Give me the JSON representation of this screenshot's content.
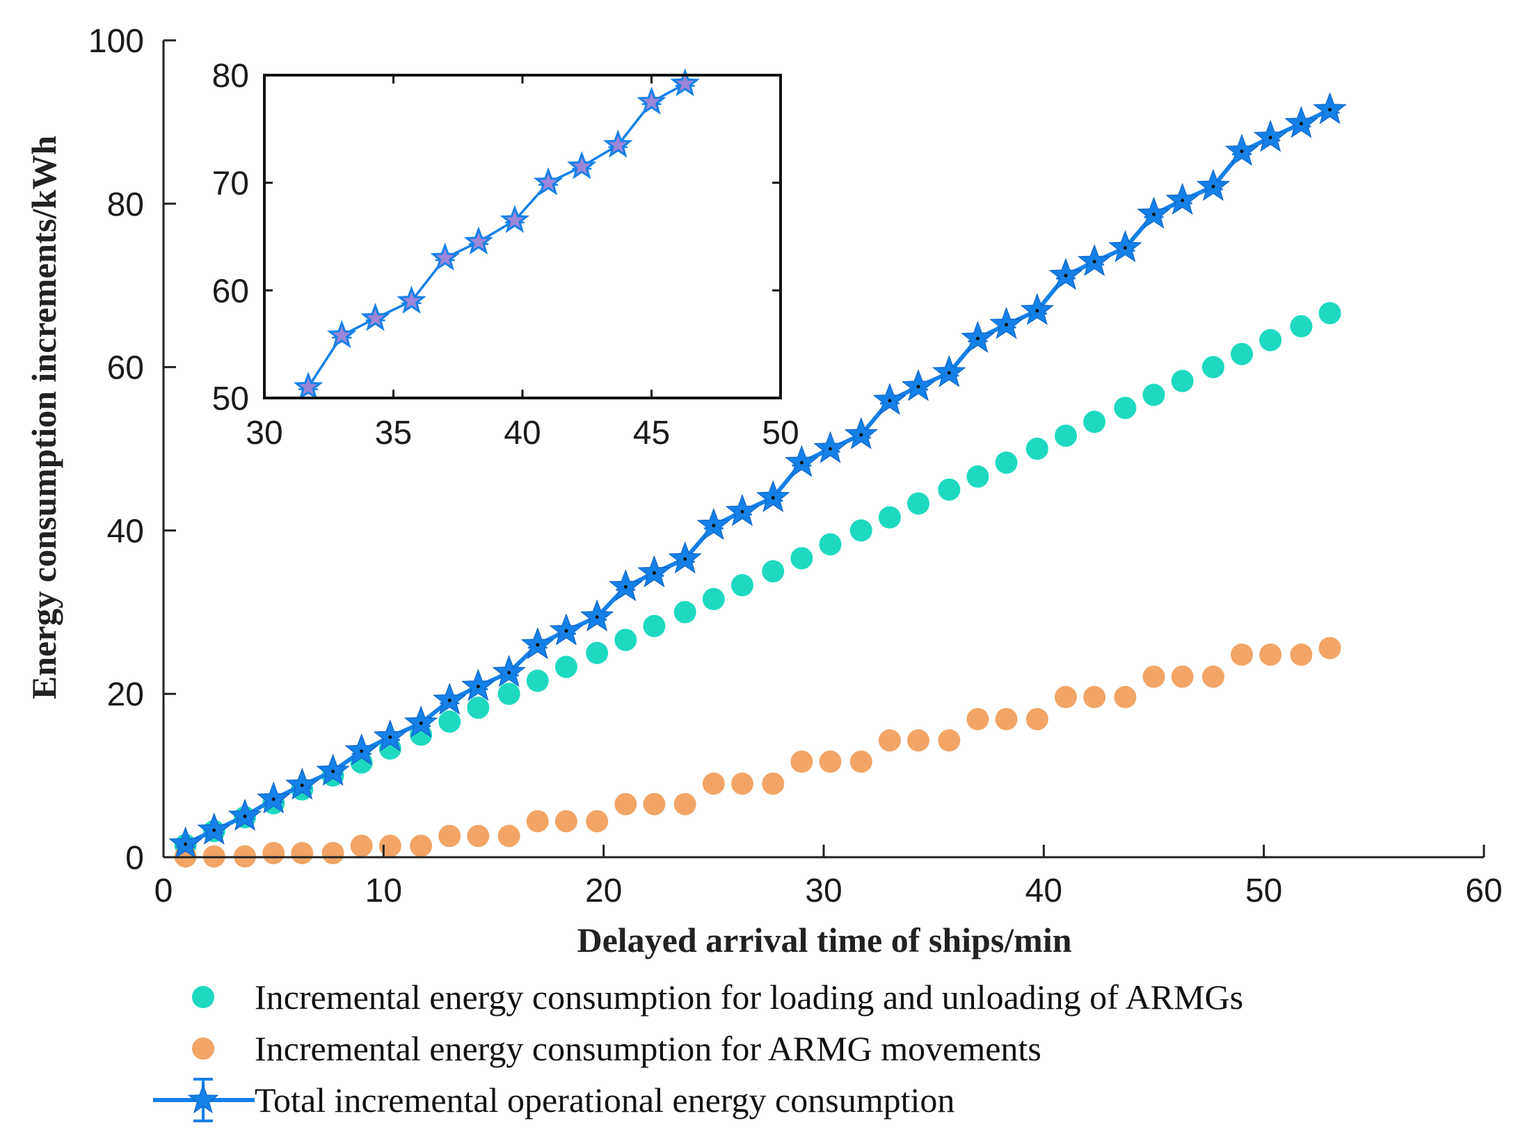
{
  "chart_data": [
    {
      "id": "main",
      "type": "scatter",
      "xlabel": "Delayed arrival time of ships/min",
      "ylabel": "Energy consumption increments/kWh",
      "xlim": [
        0,
        60
      ],
      "ylim": [
        0,
        100
      ],
      "xticks": [
        0,
        10,
        20,
        30,
        40,
        50,
        60
      ],
      "yticks": [
        0,
        20,
        40,
        60,
        80,
        100
      ],
      "x": [
        1.0,
        2.3,
        3.7,
        5.0,
        6.3,
        7.7,
        9.0,
        10.3,
        11.7,
        13.0,
        14.3,
        15.7,
        17.0,
        18.3,
        19.7,
        21.0,
        22.3,
        23.7,
        25.0,
        26.3,
        27.7,
        29.0,
        30.3,
        31.7,
        33.0,
        34.3,
        35.7,
        37.0,
        38.3,
        39.7,
        41.0,
        42.3,
        43.7,
        45.0,
        46.3,
        47.7,
        49.0,
        50.3,
        51.7,
        53.0
      ],
      "series": [
        {
          "name": "Incremental energy consumption for loading and unloading of ARMGs",
          "marker": "circle",
          "color": "#1ED9C0",
          "values": [
            1.5,
            3.2,
            4.9,
            6.6,
            8.3,
            10.0,
            11.6,
            13.3,
            15.0,
            16.6,
            18.3,
            20.0,
            21.6,
            23.3,
            25.0,
            26.6,
            28.3,
            30.0,
            31.6,
            33.3,
            35.0,
            36.6,
            38.3,
            40.0,
            41.6,
            43.3,
            45.0,
            46.6,
            48.3,
            50.0,
            51.6,
            53.3,
            55.0,
            56.6,
            58.3,
            60.0,
            61.6,
            63.3,
            65.0,
            66.6
          ]
        },
        {
          "name": "Incremental energy consumption for ARMG movements",
          "marker": "circle",
          "color": "#F2A566",
          "values": [
            0.1,
            0.1,
            0.1,
            0.5,
            0.5,
            0.5,
            1.4,
            1.4,
            1.4,
            2.6,
            2.6,
            2.6,
            4.4,
            4.4,
            4.4,
            6.5,
            6.5,
            6.5,
            9.0,
            9.0,
            9.0,
            11.7,
            11.7,
            11.7,
            14.3,
            14.3,
            14.3,
            16.9,
            16.9,
            16.9,
            19.6,
            19.6,
            19.6,
            22.1,
            22.1,
            22.1,
            24.8,
            24.8,
            24.8,
            25.6
          ]
        },
        {
          "name": "Total incremental operational energy consumption",
          "marker": "star-line-errorbar",
          "color": "#1580E8",
          "values": [
            1.6,
            3.3,
            5.0,
            7.1,
            8.8,
            10.5,
            13.0,
            14.7,
            16.4,
            19.2,
            20.9,
            22.6,
            26.0,
            27.7,
            29.4,
            33.1,
            34.8,
            36.5,
            40.6,
            42.3,
            44.0,
            48.3,
            50.0,
            51.7,
            55.9,
            57.6,
            59.3,
            63.5,
            65.2,
            66.9,
            71.2,
            72.9,
            74.6,
            78.7,
            80.4,
            82.1,
            86.4,
            88.1,
            89.8,
            91.5
          ]
        }
      ]
    },
    {
      "id": "inset",
      "type": "line",
      "xlim": [
        30,
        50
      ],
      "ylim": [
        50,
        80
      ],
      "xticks": [
        30,
        35,
        40,
        45,
        50
      ],
      "yticks": [
        50,
        60,
        70,
        80
      ],
      "x": [
        31.7,
        33.0,
        34.3,
        35.7,
        37.0,
        38.3,
        39.7,
        41.0,
        42.3,
        43.7,
        45.0,
        46.3
      ],
      "series": [
        {
          "name": "Total incremental operational energy consumption",
          "marker": "star-errorbar",
          "color": "#1580E8",
          "marker_fill": "#9C86D8",
          "values": [
            51.0,
            55.8,
            57.4,
            59.0,
            63.0,
            64.5,
            66.5,
            70.0,
            71.5,
            73.5,
            77.5,
            79.2
          ]
        }
      ]
    }
  ],
  "legend": {
    "items": [
      {
        "label": "Incremental energy consumption for loading and unloading of ARMGs",
        "color": "#1ED9C0",
        "symbol": "circle"
      },
      {
        "label": "Incremental energy consumption for ARMG movements",
        "color": "#F2A566",
        "symbol": "circle"
      },
      {
        "label": "Total incremental operational energy consumption",
        "color": "#1580E8",
        "symbol": "star-line-errorbar"
      }
    ]
  }
}
